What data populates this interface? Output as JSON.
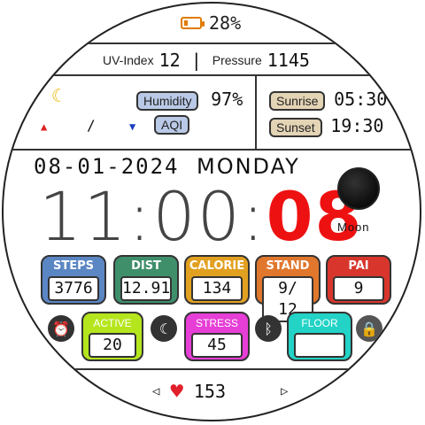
{
  "battery": {
    "percent": "28%",
    "level": 0.28,
    "color": "#e07b00"
  },
  "uv": {
    "label": "UV-Index",
    "value": "12"
  },
  "pressure": {
    "label": "Pressure",
    "value": "1145"
  },
  "weather": {
    "humidity_label": "Humidity",
    "humidity_value": "97%",
    "aqi_label": "AQI"
  },
  "sun": {
    "sunrise_label": "Sunrise",
    "sunrise_time": "05:30",
    "sunset_label": "Sunset",
    "sunset_time": "19:30"
  },
  "date": "08-01-2024",
  "day": "MONDAY",
  "time": {
    "hours": "11",
    "sep": ":",
    "minutes": "00",
    "seconds": "08"
  },
  "moon": {
    "label": "Moon"
  },
  "stats": [
    {
      "label": "STEPS",
      "value": "3776",
      "color": "#5b86c4"
    },
    {
      "label": "DIST",
      "value": "12.91",
      "color": "#3f8f6b"
    },
    {
      "label": "CALORIE",
      "value": "134",
      "color": "#e2a020"
    },
    {
      "label": "STAND",
      "value": "9/ 12",
      "color": "#e0772d"
    },
    {
      "label": "PAI",
      "value": "9",
      "color": "#d8362c"
    }
  ],
  "small_stats": [
    {
      "label": "ACTIVE",
      "value": "20",
      "color": "#b5e61d"
    },
    {
      "label": "STRESS",
      "value": "45",
      "color": "#e63ed6"
    },
    {
      "label": "FLOOR",
      "value": "",
      "color": "#22d3c6"
    }
  ],
  "heart_rate": {
    "value": "153",
    "color": "#e0202a"
  }
}
